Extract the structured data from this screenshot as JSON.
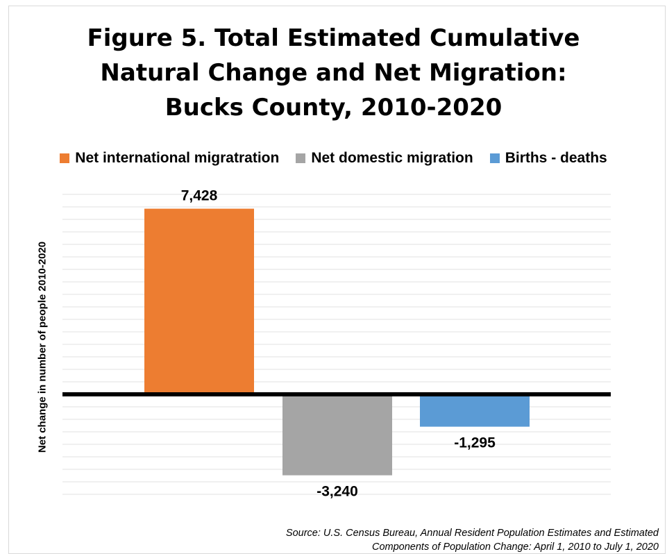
{
  "title_lines": [
    "Figure 5. Total Estimated Cumulative",
    "Natural Change and Net Migration:",
    "Bucks County, 2010-2020"
  ],
  "source_lines": [
    "Source: U.S. Census Bureau, Annual Resident Population Estimates and Estimated",
    "Components of Population Change: April 1, 2010 to July 1, 2020"
  ],
  "colors": {
    "international": "#ed7d31",
    "domestic": "#a5a5a5",
    "births_deaths": "#5b9bd5",
    "gridline": "#e0e0e0",
    "zero_line": "#000000"
  },
  "chart_data": {
    "type": "bar",
    "title": "Figure 5. Total Estimated Cumulative Natural Change and Net Migration: Bucks County, 2010-2020",
    "xlabel": "",
    "ylabel": "Net change in number of people 2010-2020",
    "categories": [
      "Net international migratration",
      "Net domestic migration",
      "Births  - deaths"
    ],
    "series": [
      {
        "name": "Net international migratration",
        "values": [
          7428,
          null,
          null
        ]
      },
      {
        "name": "Net domestic migration",
        "values": [
          null,
          -3240,
          null
        ]
      },
      {
        "name": "Births  - deaths",
        "values": [
          null,
          null,
          -1295
        ]
      }
    ],
    "data_labels": [
      "7,428",
      "-3,240",
      "-1,295"
    ],
    "ylim": [
      -4000,
      8000
    ],
    "grid": true,
    "legend": "top"
  }
}
